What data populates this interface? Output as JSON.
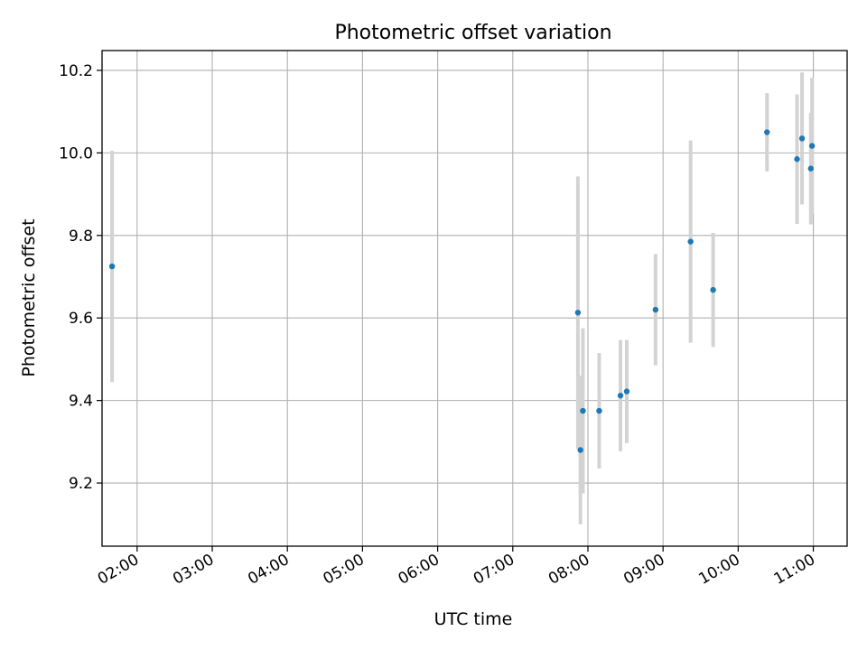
{
  "chart_data": {
    "type": "scatter",
    "title": "Photometric offset variation",
    "xlabel": "UTC time",
    "ylabel": "Photometric offset",
    "x_is_time": true,
    "xlim": [
      "01:32",
      "11:27"
    ],
    "ylim": [
      9.047,
      10.248
    ],
    "xticks": [
      "02:00",
      "03:00",
      "04:00",
      "05:00",
      "06:00",
      "07:00",
      "08:00",
      "09:00",
      "10:00",
      "11:00"
    ],
    "yticks": [
      9.2,
      9.4,
      9.6,
      9.8,
      10.0,
      10.2
    ],
    "ytick_labels": [
      "9.2",
      "9.4",
      "9.6",
      "9.8",
      "10.0",
      "10.2"
    ],
    "grid": true,
    "colors": {
      "marker": "#1f77b4",
      "errorbar": "#d3d3d3",
      "grid": "#b0b0b0"
    },
    "series": [
      {
        "points": [
          {
            "x": "01:40",
            "y": 9.725,
            "err": 0.28
          },
          {
            "x": "07:52",
            "y": 9.613,
            "err": 0.33
          },
          {
            "x": "07:54",
            "y": 9.28,
            "err": 0.18
          },
          {
            "x": "07:56",
            "y": 9.375,
            "err": 0.2
          },
          {
            "x": "08:09",
            "y": 9.375,
            "err": 0.14
          },
          {
            "x": "08:26",
            "y": 9.412,
            "err": 0.135
          },
          {
            "x": "08:31",
            "y": 9.422,
            "err": 0.125
          },
          {
            "x": "08:54",
            "y": 9.62,
            "err": 0.135
          },
          {
            "x": "09:22",
            "y": 9.785,
            "err": 0.245
          },
          {
            "x": "09:40",
            "y": 9.668,
            "err": 0.138
          },
          {
            "x": "10:23",
            "y": 10.05,
            "err": 0.095
          },
          {
            "x": "10:47",
            "y": 9.985,
            "err": 0.157
          },
          {
            "x": "10:51",
            "y": 10.035,
            "err": 0.16
          },
          {
            "x": "10:58",
            "y": 9.962,
            "err": 0.135
          },
          {
            "x": "10:59",
            "y": 10.017,
            "err": 0.165
          }
        ]
      }
    ]
  }
}
